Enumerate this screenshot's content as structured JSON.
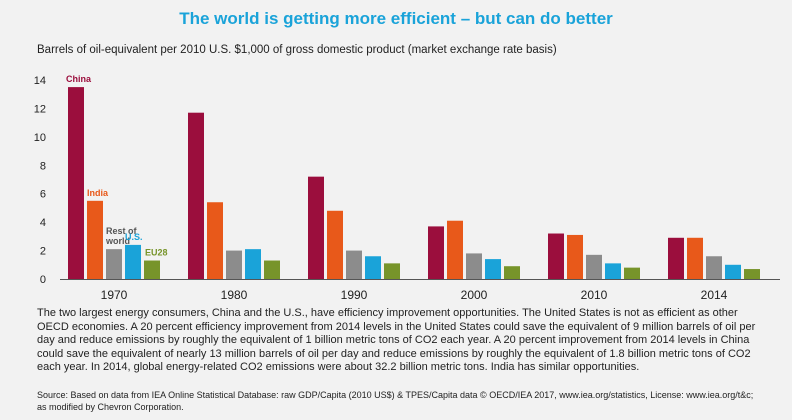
{
  "title": "The world is getting more efficient – but can do better",
  "subtitle": "Barrels of oil-equivalent per 2010 U.S. $1,000 of gross domestic product (market exchange rate basis)",
  "chart_data": {
    "type": "bar",
    "categories": [
      "1970",
      "1980",
      "1990",
      "2000",
      "2010",
      "2014"
    ],
    "series": [
      {
        "name": "China",
        "color": "#9b0e3d",
        "values": [
          13.5,
          11.7,
          7.2,
          3.7,
          3.2,
          2.9
        ]
      },
      {
        "name": "India",
        "color": "#e8591a",
        "values": [
          5.5,
          5.4,
          4.8,
          4.1,
          3.1,
          2.9
        ]
      },
      {
        "name": "Rest of world",
        "color": "#8c8c8c",
        "values": [
          2.1,
          2.0,
          2.0,
          1.8,
          1.7,
          1.6
        ]
      },
      {
        "name": "U.S.",
        "color": "#1aa3d9",
        "values": [
          2.4,
          2.1,
          1.6,
          1.4,
          1.1,
          1.0
        ]
      },
      {
        "name": "EU28",
        "color": "#77942a",
        "values": [
          1.3,
          1.3,
          1.1,
          0.9,
          0.8,
          0.7
        ]
      }
    ],
    "annotations": [
      {
        "text_lines": [
          "China"
        ],
        "series": 0,
        "color": "#9b0e3d"
      },
      {
        "text_lines": [
          "India"
        ],
        "series": 1,
        "color": "#e8591a"
      },
      {
        "text_lines": [
          "Rest of",
          "world"
        ],
        "series": 2,
        "color": "#555555"
      },
      {
        "text_lines": [
          "U.S."
        ],
        "series": 3,
        "color": "#1aa3d9"
      },
      {
        "text_lines": [
          "EU28"
        ],
        "series": 4,
        "color": "#77942a"
      }
    ],
    "ylim": [
      0,
      14
    ],
    "yticks": [
      0,
      2,
      4,
      6,
      8,
      10,
      12,
      14
    ],
    "grid": false
  },
  "body_text": "The two largest energy consumers, China and the U.S., have efficiency improvement opportunities. The United States is not as efficient as other OECD economies. A 20 percent efficiency improvement from 2014 levels in the United States could save the equivalent of 9 million barrels of oil per day and reduce emissions by roughly the equivalent of 1 billion metric tons of CO2 each year. A 20 percent improvement from 2014 levels in China could save the equivalent of nearly 13 million barrels of oil per day and reduce emissions by roughly the equivalent of 1.8 billion metric tons of CO2 each year. In 2014, global energy-related CO2 emissions were about 32.2 billion metric tons. India has similar opportunities.",
  "source": "Source: Based on data from IEA Online Statistical Database: raw GDP/Capita (2010 US$) & TPES/Capita data © OECD/IEA 2017, www.iea.org/statistics, License: www.iea.org/t&c; as modified by Chevron Corporation."
}
